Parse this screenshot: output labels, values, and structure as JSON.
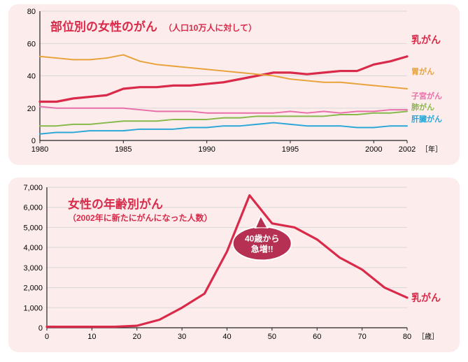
{
  "topChart": {
    "type": "line",
    "title_main": "部位別の女性のがん",
    "title_sub": "（人口10万人に対して）",
    "x_ticks": [
      1980,
      1985,
      1990,
      1995,
      2000,
      2002
    ],
    "x_unit": "［年］",
    "y_min": 0,
    "y_max": 80,
    "y_step": 20,
    "background_color": "#fdecec",
    "grid_color": "#d8d8d8",
    "series": [
      {
        "name": "乳がん",
        "color": "#d92a4a",
        "width": 3.2,
        "label_big": true,
        "x": [
          1980,
          1981,
          1982,
          1983,
          1984,
          1985,
          1986,
          1987,
          1988,
          1989,
          1990,
          1991,
          1992,
          1993,
          1994,
          1995,
          1996,
          1997,
          1998,
          1999,
          2000,
          2001,
          2002
        ],
        "y": [
          24,
          24,
          26,
          27,
          28,
          32,
          33,
          33,
          34,
          34,
          35,
          36,
          38,
          40,
          42,
          42,
          41,
          42,
          43,
          43,
          47,
          49,
          52
        ]
      },
      {
        "name": "胃がん",
        "color": "#e8a23a",
        "width": 2.0,
        "x": [
          1980,
          1981,
          1982,
          1983,
          1984,
          1985,
          1986,
          1987,
          1988,
          1989,
          1990,
          1991,
          1992,
          1993,
          1994,
          1995,
          1996,
          1997,
          1998,
          1999,
          2000,
          2001,
          2002
        ],
        "y": [
          52,
          51,
          50,
          50,
          51,
          53,
          49,
          47,
          46,
          45,
          44,
          43,
          42,
          41,
          40,
          38,
          37,
          36,
          36,
          35,
          34,
          33,
          32
        ]
      },
      {
        "name": "子宮がん",
        "color": "#e86fa8",
        "width": 2.0,
        "x": [
          1980,
          1981,
          1982,
          1983,
          1984,
          1985,
          1986,
          1987,
          1988,
          1989,
          1990,
          1991,
          1992,
          1993,
          1994,
          1995,
          1996,
          1997,
          1998,
          1999,
          2000,
          2001,
          2002
        ],
        "y": [
          21,
          20,
          20,
          20,
          20,
          20,
          19,
          18,
          18,
          18,
          17,
          17,
          17,
          17,
          17,
          18,
          17,
          18,
          17,
          18,
          18,
          19,
          19
        ]
      },
      {
        "name": "肺がん",
        "color": "#86b84a",
        "width": 2.0,
        "x": [
          1980,
          1981,
          1982,
          1983,
          1984,
          1985,
          1986,
          1987,
          1988,
          1989,
          1990,
          1991,
          1992,
          1993,
          1994,
          1995,
          1996,
          1997,
          1998,
          1999,
          2000,
          2001,
          2002
        ],
        "y": [
          9,
          9,
          10,
          10,
          11,
          12,
          12,
          12,
          13,
          13,
          13,
          14,
          14,
          15,
          15,
          15,
          15,
          15,
          16,
          16,
          17,
          17,
          18
        ]
      },
      {
        "name": "肝臓がん",
        "color": "#2aa7d6",
        "width": 2.0,
        "x": [
          1980,
          1981,
          1982,
          1983,
          1984,
          1985,
          1986,
          1987,
          1988,
          1989,
          1990,
          1991,
          1992,
          1993,
          1994,
          1995,
          1996,
          1997,
          1998,
          1999,
          2000,
          2001,
          2002
        ],
        "y": [
          4,
          5,
          5,
          6,
          6,
          6,
          7,
          7,
          7,
          8,
          8,
          9,
          9,
          10,
          11,
          10,
          9,
          9,
          9,
          8,
          8,
          9,
          9
        ]
      }
    ]
  },
  "bottomChart": {
    "type": "line",
    "title_main": "女性の年齢別がん",
    "title_sub": "（2002年に新たにがんになった人数）",
    "callout_line1": "40歳から",
    "callout_line2": "急増!!",
    "callout_color": "#b53052",
    "x_min": 0,
    "x_max": 80,
    "x_step": 10,
    "x_unit": "［歳］",
    "y_min": 0,
    "y_max": 7000,
    "y_step": 1000,
    "background_color": "#fdecec",
    "grid_color": "#d8d8d8",
    "series": [
      {
        "name": "乳がん",
        "color": "#d92a4a",
        "width": 3.2,
        "x": [
          0,
          5,
          10,
          15,
          20,
          25,
          30,
          35,
          40,
          45,
          50,
          55,
          60,
          65,
          70,
          75,
          80
        ],
        "y": [
          50,
          50,
          50,
          50,
          100,
          400,
          1000,
          1700,
          3800,
          6600,
          5200,
          5000,
          4400,
          3500,
          2900,
          2000,
          1500
        ]
      }
    ]
  }
}
